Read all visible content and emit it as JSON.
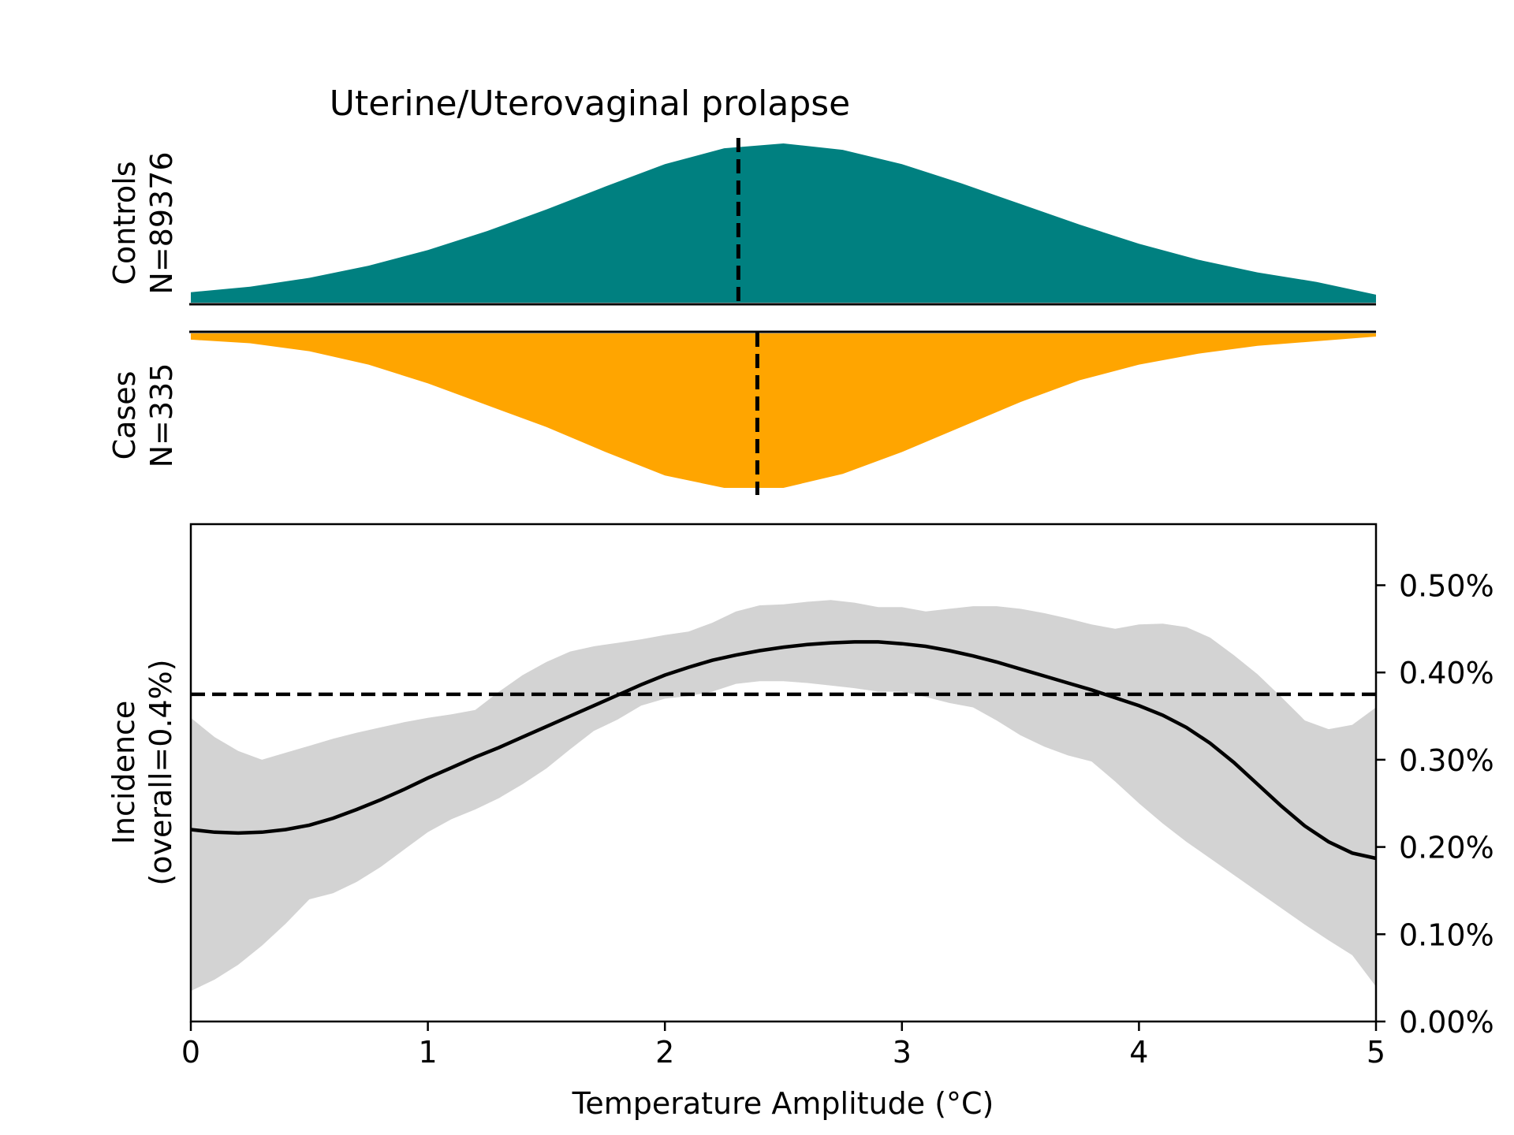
{
  "chart_data": [
    {
      "type": "area",
      "title": "Uterine/Uterovaginal prolapse",
      "panel": "controls",
      "label_line1": "Controls",
      "label_line2": "N=89376",
      "color": "#008080",
      "x": [
        0,
        0.25,
        0.5,
        0.75,
        1.0,
        1.25,
        1.5,
        1.75,
        2.0,
        2.25,
        2.5,
        2.75,
        3.0,
        3.25,
        3.5,
        3.75,
        4.0,
        4.25,
        4.5,
        4.75,
        5.0
      ],
      "density": [
        0.066,
        0.1,
        0.156,
        0.232,
        0.33,
        0.45,
        0.585,
        0.73,
        0.87,
        0.97,
        1.0,
        0.96,
        0.87,
        0.75,
        0.62,
        0.49,
        0.37,
        0.27,
        0.19,
        0.13,
        0.05
      ],
      "mean": 2.31,
      "xlim": [
        0,
        5
      ]
    },
    {
      "type": "area",
      "panel": "cases",
      "label_line1": "Cases",
      "label_line2": "N=335",
      "color": "#FFA500",
      "x": [
        0,
        0.25,
        0.5,
        0.75,
        1.0,
        1.25,
        1.5,
        1.75,
        2.0,
        2.25,
        2.5,
        2.75,
        3.0,
        3.25,
        3.5,
        3.75,
        4.0,
        4.25,
        4.5,
        4.75,
        5.0
      ],
      "density": [
        0.04,
        0.063,
        0.114,
        0.2,
        0.32,
        0.46,
        0.6,
        0.76,
        0.91,
        0.99,
        0.99,
        0.9,
        0.76,
        0.6,
        0.44,
        0.3,
        0.2,
        0.13,
        0.08,
        0.05,
        0.02
      ],
      "mean": 2.39,
      "xlim": [
        0,
        5
      ]
    },
    {
      "type": "line",
      "xlabel": "Temperature Amplitude (°C)",
      "ylabel_line1": "Incidence",
      "ylabel_line2": "(overall=0.4%)",
      "x_ticks": [
        "0",
        "1",
        "2",
        "3",
        "4",
        "5"
      ],
      "y_ticks": [
        "0.00%",
        "0.10%",
        "0.20%",
        "0.30%",
        "0.40%",
        "0.50%"
      ],
      "xlim": [
        0,
        5
      ],
      "ylim": [
        0,
        0.57
      ],
      "overall_line": 0.375,
      "line_color": "#000000",
      "band_color": "#D3D3D3",
      "x": [
        0,
        0.1,
        0.2,
        0.3,
        0.4,
        0.5,
        0.6,
        0.7,
        0.8,
        0.9,
        1.0,
        1.1,
        1.2,
        1.3,
        1.4,
        1.5,
        1.6,
        1.7,
        1.8,
        1.9,
        2.0,
        2.1,
        2.2,
        2.3,
        2.4,
        2.5,
        2.6,
        2.7,
        2.8,
        2.9,
        3.0,
        3.1,
        3.2,
        3.3,
        3.4,
        3.5,
        3.6,
        3.7,
        3.8,
        3.9,
        4.0,
        4.1,
        4.2,
        4.3,
        4.4,
        4.5,
        4.6,
        4.7,
        4.8,
        4.9,
        5.0
      ],
      "y": [
        0.22,
        0.217,
        0.216,
        0.217,
        0.22,
        0.225,
        0.233,
        0.243,
        0.254,
        0.266,
        0.279,
        0.291,
        0.303,
        0.314,
        0.326,
        0.338,
        0.35,
        0.362,
        0.374,
        0.386,
        0.397,
        0.406,
        0.414,
        0.42,
        0.425,
        0.429,
        0.432,
        0.434,
        0.435,
        0.435,
        0.433,
        0.43,
        0.425,
        0.419,
        0.412,
        0.404,
        0.396,
        0.388,
        0.38,
        0.371,
        0.362,
        0.351,
        0.337,
        0.319,
        0.297,
        0.272,
        0.247,
        0.224,
        0.206,
        0.193,
        0.187
      ],
      "lower": [
        0.035,
        0.048,
        0.065,
        0.087,
        0.112,
        0.14,
        0.147,
        0.16,
        0.177,
        0.197,
        0.217,
        0.232,
        0.243,
        0.256,
        0.272,
        0.29,
        0.312,
        0.333,
        0.346,
        0.362,
        0.37,
        0.373,
        0.378,
        0.387,
        0.39,
        0.39,
        0.388,
        0.385,
        0.382,
        0.378,
        0.378,
        0.372,
        0.365,
        0.36,
        0.345,
        0.328,
        0.315,
        0.305,
        0.298,
        0.275,
        0.25,
        0.227,
        0.206,
        0.187,
        0.168,
        0.149,
        0.13,
        0.111,
        0.093,
        0.076,
        0.04
      ],
      "upper": [
        0.348,
        0.326,
        0.31,
        0.3,
        0.308,
        0.316,
        0.324,
        0.331,
        0.337,
        0.343,
        0.348,
        0.352,
        0.357,
        0.378,
        0.397,
        0.412,
        0.424,
        0.43,
        0.434,
        0.438,
        0.443,
        0.447,
        0.457,
        0.47,
        0.477,
        0.478,
        0.481,
        0.483,
        0.48,
        0.475,
        0.475,
        0.47,
        0.473,
        0.476,
        0.476,
        0.473,
        0.468,
        0.462,
        0.455,
        0.45,
        0.455,
        0.456,
        0.452,
        0.44,
        0.42,
        0.398,
        0.372,
        0.345,
        0.335,
        0.34,
        0.36
      ]
    }
  ]
}
